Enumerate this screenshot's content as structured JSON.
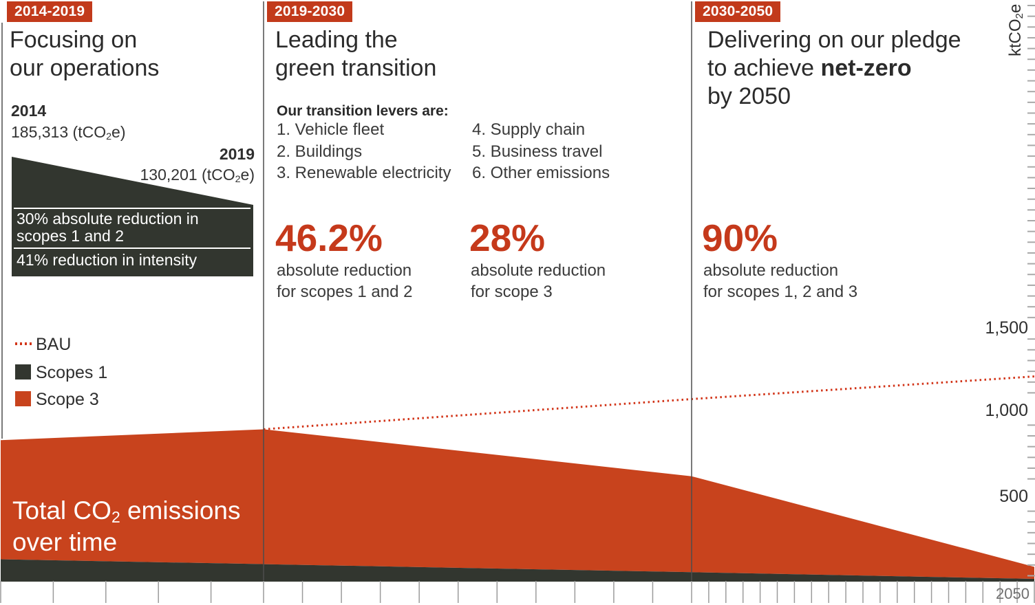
{
  "panel1": {
    "badge": "2014-2019",
    "title_line1": "Focusing on",
    "title_line2": "our operations",
    "year_start": {
      "year": "2014",
      "value_pre": "185,313 (tCO",
      "value_sub": "2",
      "value_post": "e)"
    },
    "year_end": {
      "year": "2019",
      "value_pre": "130,201 (tCO",
      "value_sub": "2",
      "value_post": "e)"
    },
    "wedge": {
      "line1a": "30% absolute reduction in",
      "line1b": "scopes 1 and 2",
      "line2": "41% reduction in intensity"
    },
    "legend": {
      "bau": "BAU",
      "scopes1": "Scopes 1",
      "scope3": "Scope 3"
    }
  },
  "panel2": {
    "badge": "2019-2030",
    "title_line1": "Leading the",
    "title_line2": "green transition",
    "levers_title": "Our transition levers are:",
    "levers_col1": [
      "1. Vehicle fleet",
      "2. Buildings",
      "3. Renewable electricity"
    ],
    "levers_col2": [
      "4. Supply chain",
      "5. Business travel",
      "6. Other emissions"
    ],
    "stat1": {
      "value": "46.2%",
      "caption_line1": "absolute reduction",
      "caption_line2": "for scopes 1 and 2"
    },
    "stat2": {
      "value": "28%",
      "caption_line1": "absolute reduction",
      "caption_line2": "for scope 3"
    }
  },
  "panel3": {
    "badge": "2030-2050",
    "title_line1": "Delivering on our pledge",
    "title_line2_pre": "to achieve ",
    "title_line2_bold": "net-zero",
    "title_line3": "by 2050",
    "stat": {
      "value": "90%",
      "caption_line1": "absolute reduction",
      "caption_line2": "for scopes 1, 2 and 3"
    }
  },
  "chart": {
    "overlay_title_pre": "Total CO",
    "overlay_title_sub": "2",
    "overlay_title_post": " emissions",
    "overlay_title_line2": "over time",
    "axis_unit_pre": "ktCO",
    "axis_unit_sub": "2",
    "axis_unit_post": "e",
    "y_labels": [
      "1,500",
      "1,000",
      "500"
    ],
    "x_end_label": "2050"
  },
  "colors": {
    "badge_orange": "#c23a1b",
    "area_orange": "#c8431d",
    "stat_orange": "#c5391b",
    "dark_scopes1": "#32362f",
    "bau_red": "#d23418",
    "tick_gray": "#9b9b9b",
    "divider_gray": "#4d4d4d"
  },
  "chart_data": {
    "type": "area",
    "title": "Total CO2 emissions over time",
    "ylabel": "ktCO2e",
    "y_ticks": [
      500,
      1000,
      1500
    ],
    "ylim": [
      0,
      1700
    ],
    "x_segments": [
      {
        "label": "2014-2019",
        "from": 2014,
        "to": 2019
      },
      {
        "label": "2019-2030",
        "from": 2019,
        "to": 2030
      },
      {
        "label": "2030-2050",
        "from": 2030,
        "to": 2050
      }
    ],
    "x_tick_interval_years": 1,
    "x_end_label": "2050",
    "legend_position": "left-middle",
    "grid": false,
    "series": [
      {
        "name": "BAU",
        "style": "dotted-line",
        "color": "#d23418",
        "x": [
          2019,
          2030,
          2050
        ],
        "y": [
          900,
          1080,
          1215
        ]
      },
      {
        "name": "Scope 3",
        "style": "area",
        "color": "#c8431d",
        "x": [
          2014,
          2019,
          2030,
          2050
        ],
        "y_total_top": [
          835,
          900,
          620,
          80
        ]
      },
      {
        "name": "Scopes 1",
        "style": "area",
        "color": "#32362f",
        "x": [
          2014,
          2019,
          2030,
          2050
        ],
        "y": [
          125,
          96,
          48,
          8
        ]
      }
    ],
    "annotations": [
      {
        "year": 2014,
        "text": "185,313 tCO2e"
      },
      {
        "year": 2019,
        "text": "130,201 tCO2e"
      },
      {
        "text": "30% absolute reduction in scopes 1 and 2 (2014-2019)"
      },
      {
        "text": "41% reduction in intensity (2014-2019)"
      },
      {
        "text": "46.2% absolute reduction for scopes 1 and 2 (2019-2030)"
      },
      {
        "text": "28% absolute reduction for scope 3 (2019-2030)"
      },
      {
        "text": "90% absolute reduction for scopes 1, 2 and 3 (2030-2050)"
      }
    ]
  }
}
